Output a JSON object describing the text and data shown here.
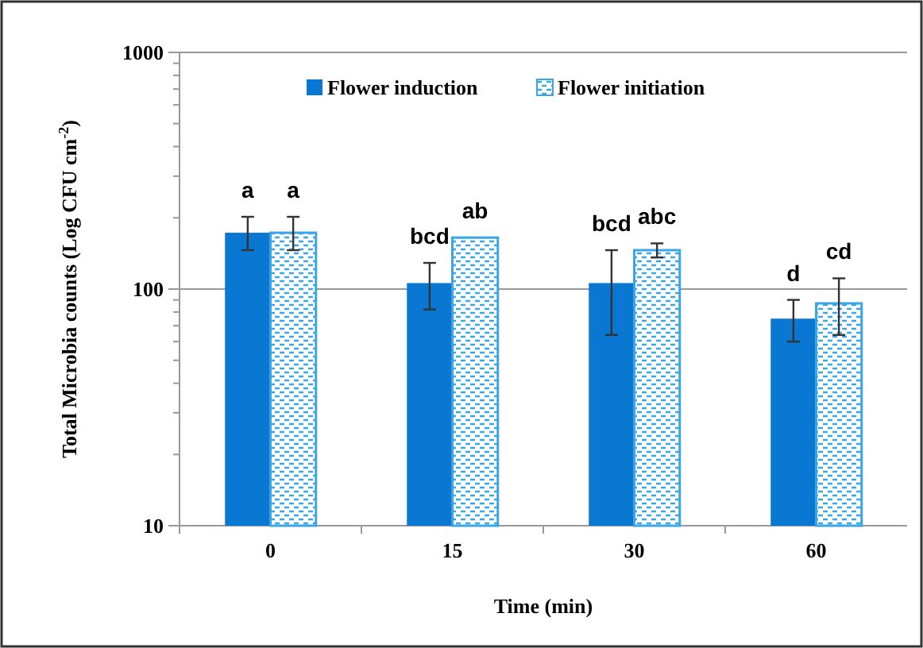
{
  "chart_data": {
    "type": "bar",
    "xlabel": "Time (min)",
    "ylabel": "Total Microbia counts (Log CFU cm$^{-2}$)",
    "categories": [
      "0",
      "15",
      "30",
      "60"
    ],
    "series": [
      {
        "name": "Flower induction",
        "color": "#0a78d2",
        "values": [
          173,
          106,
          106,
          75
        ],
        "errors": [
          [
            146,
            202
          ],
          [
            82,
            129
          ],
          [
            64,
            146
          ],
          [
            60,
            90
          ]
        ],
        "value_labels": [
          "a",
          "bcd",
          "bcd",
          "d"
        ]
      },
      {
        "name": "Flower initiation",
        "color": "#3aa6e8",
        "values": [
          173,
          165,
          146,
          87
        ],
        "errors": [
          [
            146,
            202
          ],
          null,
          [
            136,
            156
          ],
          [
            64,
            111
          ]
        ],
        "value_labels": [
          "a",
          "ab",
          "abc",
          "cd"
        ]
      }
    ],
    "log": "y",
    "ylim": [
      10,
      1000
    ],
    "yticks": [
      10,
      {
        "value": 20,
        "label": null
      },
      {
        "value": 30,
        "label": null
      },
      {
        "value": 40,
        "label": null
      },
      {
        "value": 50,
        "label": null
      },
      {
        "value": 60,
        "label": null
      },
      {
        "value": 70,
        "label": null
      },
      {
        "value": 80,
        "label": null
      },
      {
        "value": 90,
        "label": null
      },
      100,
      {
        "value": 200,
        "label": null
      },
      {
        "value": 300,
        "label": null
      },
      {
        "value": 400,
        "label": null
      },
      {
        "value": 500,
        "label": null
      },
      {
        "value": 600,
        "label": null
      },
      {
        "value": 700,
        "label": null
      },
      {
        "value": 800,
        "label": null
      },
      {
        "value": 900,
        "label": null
      },
      1000
    ],
    "grid": "y",
    "legend": "top left"
  }
}
